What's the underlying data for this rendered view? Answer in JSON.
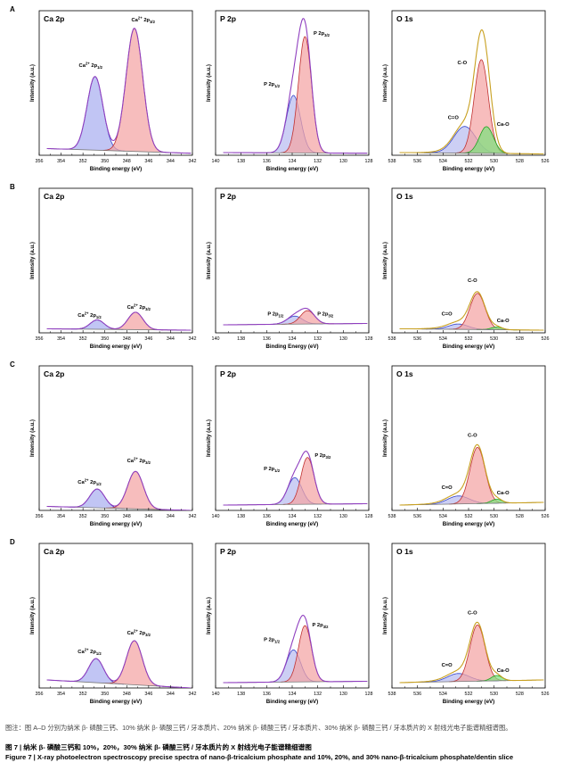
{
  "rows": [
    {
      "label": "A"
    },
    {
      "label": "B"
    },
    {
      "label": "C"
    },
    {
      "label": "D"
    }
  ],
  "captions": {
    "note": "图注：图 A–D 分别为纳米 β- 磷酸三钙、10% 纳米 β- 磷酸三钙 / 牙本质片、20% 纳米 β- 磷酸三钙 / 牙本质片、30% 纳米 β- 磷酸三钙 / 牙本质片的 X 射线光电子能谱精细谱图。",
    "figure_title_cn": "图 7 | 纳米 β- 磷酸三钙和 10%，20%，30% 纳米 β- 磷酸三钙 / 牙本质片的 X 射线光电子能谱精细谱图",
    "figure_title_en": "Figure 7 | X-ray photoelectron spectroscopy precise spectra of nano-β-tricalcium phosphate and 10%, 20%, and 30% nano-β-tricalcium phosphate/dentin slice"
  },
  "colors": {
    "ca_2p12": "#a9aef0",
    "ca_2p32": "#f4a3a3",
    "p_2p12": "#b9bdf0",
    "p_2p32": "#f4a3a3",
    "o_co": "#f4a3a3",
    "o_c_eq_o": "#b9bdf0",
    "o_cao": "#7de07d",
    "envelope_ca_p": "#8f3fbf",
    "envelope_o": "#c8a020",
    "background": "#777777"
  },
  "chart_data": [
    {
      "type": "line",
      "panel": "A-Ca",
      "title": "Ca 2p",
      "xlabel": "Binding energy (eV)",
      "ylabel": "Intensity (a.u.)",
      "xlim": [
        356,
        342
      ],
      "xticks": [
        356,
        354,
        352,
        350,
        348,
        346,
        344,
        342
      ],
      "ylim": [
        0,
        1.08
      ],
      "baseline": [
        0.05,
        0.015
      ],
      "peaks": [
        {
          "name": "Ca2+ 2p1/2",
          "center": 350.9,
          "height": 0.55,
          "fwhm": 1.7,
          "color": "ca_2p12"
        },
        {
          "name": "Ca2+ 2p3/2",
          "center": 347.3,
          "height": 0.92,
          "fwhm": 1.8,
          "color": "ca_2p32"
        }
      ],
      "envelope": "envelope_ca_p",
      "annotations": [
        {
          "base": "Ca",
          "sup": "2+",
          "rest": " 2p",
          "sub": "1/2",
          "x": 351.3,
          "y": 0.66
        },
        {
          "base": "Ca",
          "sup": "2+",
          "rest": " 2p",
          "sub": "3/2",
          "x": 346.5,
          "y": 1.0
        }
      ]
    },
    {
      "type": "line",
      "panel": "A-P",
      "title": "P 2p",
      "xlabel": "Binding energy (eV)",
      "ylabel": "Intensity (a.u.)",
      "xlim": [
        140,
        128
      ],
      "xticks": [
        140,
        138,
        136,
        134,
        132,
        130,
        128
      ],
      "ylim": [
        0,
        1.08
      ],
      "baseline": [
        0.02,
        0.015
      ],
      "peaks": [
        {
          "name": "P 2p1/2",
          "center": 133.9,
          "height": 0.43,
          "fwhm": 1.3,
          "color": "p_2p12"
        },
        {
          "name": "P 2p3/2",
          "center": 133.0,
          "height": 0.87,
          "fwhm": 1.2,
          "color": "p_2p32"
        }
      ],
      "envelope": "envelope_ca_p",
      "annotations": [
        {
          "base": "P 2p",
          "sub": "1/2",
          "x": 135.6,
          "y": 0.52
        },
        {
          "base": "P 2p",
          "sub": "3/2",
          "x": 131.7,
          "y": 0.9
        }
      ]
    },
    {
      "type": "line",
      "panel": "A-O",
      "title": "O 1s",
      "xlabel": "Binding energy (eV)",
      "ylabel": "Intensity (a.u.)",
      "xlim": [
        538,
        526
      ],
      "xticks": [
        538,
        536,
        534,
        532,
        530,
        528,
        526
      ],
      "ylim": [
        0,
        1.08
      ],
      "baseline": [
        0.02,
        0.01
      ],
      "peaks": [
        {
          "name": "C=O",
          "center": 532.3,
          "height": 0.2,
          "fwhm": 2.0,
          "color": "o_c_eq_o"
        },
        {
          "name": "C-O",
          "center": 531.0,
          "height": 0.7,
          "fwhm": 1.3,
          "color": "o_co"
        },
        {
          "name": "Ca-O",
          "center": 530.6,
          "height": 0.2,
          "fwhm": 1.3,
          "color": "o_cao"
        }
      ],
      "envelope": "envelope_o",
      "annotations": [
        {
          "base": "C-O",
          "x": 532.5,
          "y": 0.68
        },
        {
          "base": "C=O",
          "x": 533.2,
          "y": 0.27
        },
        {
          "base": "Ca-O",
          "x": 529.3,
          "y": 0.22
        }
      ]
    },
    {
      "type": "line",
      "panel": "B-Ca",
      "title": "Ca 2p",
      "xlabel": "Binding energy (eV)",
      "ylabel": "Intensity (a.u.)",
      "xlim": [
        356,
        342
      ],
      "xticks": [
        356,
        354,
        352,
        350,
        348,
        346,
        344,
        342
      ],
      "ylim": [
        0,
        1.08
      ],
      "baseline": [
        0.03,
        0.02
      ],
      "peaks": [
        {
          "name": "Ca2+ 2p1/2",
          "center": 350.7,
          "height": 0.07,
          "fwhm": 1.5,
          "color": "ca_2p12"
        },
        {
          "name": "Ca2+ 2p3/2",
          "center": 347.2,
          "height": 0.13,
          "fwhm": 1.6,
          "color": "ca_2p32"
        }
      ],
      "envelope": "envelope_ca_p",
      "annotations": [
        {
          "base": "Ca",
          "sup": "2+",
          "rest": " 2p",
          "sub": "1/2",
          "x": 351.4,
          "y": 0.12
        },
        {
          "base": "Ca",
          "sup": "2+",
          "rest": " 2p",
          "sub": "3/2",
          "x": 346.9,
          "y": 0.18
        }
      ]
    },
    {
      "type": "line",
      "panel": "B-P",
      "title": "P 2p",
      "xlabel": "Binding Energy (eV)",
      "ylabel": "Intensity (a.u.)",
      "xlim": [
        140,
        128
      ],
      "xticks": [
        140,
        138,
        136,
        134,
        132,
        130,
        128
      ],
      "ylim": [
        0,
        1.08
      ],
      "baseline": [
        0.06,
        0.07
      ],
      "peaks": [
        {
          "name": "P 2p1/2",
          "center": 133.8,
          "height": 0.06,
          "fwhm": 1.4,
          "color": "p_2p12"
        },
        {
          "name": "P 2p3/2",
          "center": 132.8,
          "height": 0.1,
          "fwhm": 1.3,
          "color": "p_2p32"
        }
      ],
      "envelope": "envelope_ca_p",
      "annotations": [
        {
          "base": "P 2p",
          "sub": "1/2",
          "x": 135.3,
          "y": 0.13
        },
        {
          "base": "P 2p",
          "sub": "3/2",
          "x": 131.4,
          "y": 0.13
        }
      ]
    },
    {
      "type": "line",
      "panel": "B-O",
      "title": "O 1s",
      "xlabel": "Binding energy (eV)",
      "ylabel": "Intensity (a.u.)",
      "xlim": [
        538,
        526
      ],
      "xticks": [
        538,
        536,
        534,
        532,
        530,
        528,
        526
      ],
      "ylim": [
        0,
        1.08
      ],
      "baseline": [
        0.03,
        0.02
      ],
      "peaks": [
        {
          "name": "C=O",
          "center": 532.8,
          "height": 0.04,
          "fwhm": 1.8,
          "color": "o_c_eq_o"
        },
        {
          "name": "C-O",
          "center": 531.3,
          "height": 0.27,
          "fwhm": 1.4,
          "color": "o_co"
        },
        {
          "name": "Ca-O",
          "center": 529.8,
          "height": 0.02,
          "fwhm": 1.0,
          "color": "o_cao"
        }
      ],
      "envelope": "envelope_o",
      "annotations": [
        {
          "base": "C-O",
          "x": 531.7,
          "y": 0.38
        },
        {
          "base": "C=O",
          "x": 533.7,
          "y": 0.13
        },
        {
          "base": "Ca-O",
          "x": 529.3,
          "y": 0.08
        }
      ]
    },
    {
      "type": "line",
      "panel": "C-Ca",
      "title": "Ca 2p",
      "xlabel": "Binding energy (eV)",
      "ylabel": "Intensity (a.u.)",
      "xlim": [
        356,
        342
      ],
      "xticks": [
        356,
        354,
        352,
        350,
        348,
        346,
        344,
        342
      ],
      "ylim": [
        0,
        1.08
      ],
      "baseline": [
        0.03,
        0.0
      ],
      "peaks": [
        {
          "name": "Ca2+ 2p1/2",
          "center": 350.7,
          "height": 0.14,
          "fwhm": 1.6,
          "color": "ca_2p12"
        },
        {
          "name": "Ca2+ 2p3/2",
          "center": 347.2,
          "height": 0.28,
          "fwhm": 1.7,
          "color": "ca_2p32"
        }
      ],
      "envelope": "envelope_ca_p",
      "annotations": [
        {
          "base": "Ca",
          "sup": "2+",
          "rest": " 2p",
          "sub": "1/2",
          "x": 351.4,
          "y": 0.2
        },
        {
          "base": "Ca",
          "sup": "2+",
          "rest": " 2p",
          "sub": "3/2",
          "x": 346.9,
          "y": 0.36
        }
      ]
    },
    {
      "type": "line",
      "panel": "C-P",
      "title": "P 2p",
      "xlabel": "Binding energy (eV)",
      "ylabel": "Intensity (a.u.)",
      "xlim": [
        140,
        128
      ],
      "xticks": [
        140,
        138,
        136,
        134,
        132,
        130,
        128
      ],
      "ylim": [
        0,
        1.08
      ],
      "baseline": [
        0.04,
        0.05
      ],
      "peaks": [
        {
          "name": "P 2p1/2",
          "center": 133.8,
          "height": 0.2,
          "fwhm": 1.3,
          "color": "p_2p12"
        },
        {
          "name": "P 2p3/2",
          "center": 132.8,
          "height": 0.35,
          "fwhm": 1.2,
          "color": "p_2p32"
        }
      ],
      "envelope": "envelope_ca_p",
      "annotations": [
        {
          "base": "P 2p",
          "sub": "1/2",
          "x": 135.6,
          "y": 0.3
        },
        {
          "base": "P 2p",
          "sub": "3/2",
          "x": 131.6,
          "y": 0.4
        }
      ]
    },
    {
      "type": "line",
      "panel": "C-O",
      "title": "O 1s",
      "xlabel": "Binding energy (eV)",
      "ylabel": "Intensity (a.u.)",
      "xlim": [
        538,
        526
      ],
      "xticks": [
        538,
        536,
        534,
        532,
        530,
        528,
        526
      ],
      "ylim": [
        0,
        1.08
      ],
      "baseline": [
        0.04,
        0.06
      ],
      "peaks": [
        {
          "name": "C=O",
          "center": 532.8,
          "height": 0.06,
          "fwhm": 2.0,
          "color": "o_c_eq_o"
        },
        {
          "name": "C-O",
          "center": 531.3,
          "height": 0.42,
          "fwhm": 1.4,
          "color": "o_co"
        },
        {
          "name": "Ca-O",
          "center": 529.8,
          "height": 0.03,
          "fwhm": 1.0,
          "color": "o_cao"
        }
      ],
      "envelope": "envelope_o",
      "annotations": [
        {
          "base": "C-O",
          "x": 531.7,
          "y": 0.55
        },
        {
          "base": "C=O",
          "x": 533.7,
          "y": 0.16
        },
        {
          "base": "Ca-O",
          "x": 529.3,
          "y": 0.12
        }
      ]
    },
    {
      "type": "line",
      "panel": "D-Ca",
      "title": "Ca 2p",
      "xlabel": "Binding energy (eV)",
      "ylabel": "Intensity (a.u.)",
      "xlim": [
        356,
        342
      ],
      "xticks": [
        356,
        354,
        352,
        350,
        348,
        346,
        344,
        342
      ],
      "ylim": [
        0,
        1.08
      ],
      "baseline": [
        0.06,
        0.0
      ],
      "peaks": [
        {
          "name": "Ca2+ 2p1/2",
          "center": 350.8,
          "height": 0.18,
          "fwhm": 1.6,
          "color": "ca_2p12"
        },
        {
          "name": "Ca2+ 2p3/2",
          "center": 347.3,
          "height": 0.33,
          "fwhm": 1.7,
          "color": "ca_2p32"
        }
      ],
      "envelope": "envelope_ca_p",
      "annotations": [
        {
          "base": "Ca",
          "sup": "2+",
          "rest": " 2p",
          "sub": "1/2",
          "x": 351.4,
          "y": 0.26
        },
        {
          "base": "Ca",
          "sup": "2+",
          "rest": " 2p",
          "sub": "3/2",
          "x": 346.9,
          "y": 0.4
        }
      ]
    },
    {
      "type": "line",
      "panel": "D-P",
      "title": "P 2p",
      "xlabel": "Binding energy (eV)",
      "ylabel": "Intensity (a.u.)",
      "xlim": [
        140,
        128
      ],
      "xticks": [
        140,
        138,
        136,
        134,
        132,
        130,
        128
      ],
      "ylim": [
        0,
        1.08
      ],
      "baseline": [
        0.04,
        0.05
      ],
      "peaks": [
        {
          "name": "P 2p1/2",
          "center": 133.9,
          "height": 0.24,
          "fwhm": 1.3,
          "color": "p_2p12"
        },
        {
          "name": "P 2p3/2",
          "center": 133.0,
          "height": 0.42,
          "fwhm": 1.2,
          "color": "p_2p32"
        }
      ],
      "envelope": "envelope_ca_p",
      "annotations": [
        {
          "base": "P 2p",
          "sub": "1/2",
          "x": 135.6,
          "y": 0.35
        },
        {
          "base": "P 2p",
          "sub": "3/2",
          "x": 131.8,
          "y": 0.46
        }
      ]
    },
    {
      "type": "line",
      "panel": "D-O",
      "title": "O 1s",
      "xlabel": "Binding energy (eV)",
      "ylabel": "Intensity (a.u.)",
      "xlim": [
        538,
        526
      ],
      "xticks": [
        538,
        536,
        534,
        532,
        530,
        528,
        526
      ],
      "ylim": [
        0,
        1.08
      ],
      "baseline": [
        0.04,
        0.06
      ],
      "peaks": [
        {
          "name": "C=O",
          "center": 532.8,
          "height": 0.06,
          "fwhm": 2.0,
          "color": "o_c_eq_o"
        },
        {
          "name": "C-O",
          "center": 531.3,
          "height": 0.42,
          "fwhm": 1.4,
          "color": "o_co"
        },
        {
          "name": "Ca-O",
          "center": 529.8,
          "height": 0.04,
          "fwhm": 1.0,
          "color": "o_cao"
        }
      ],
      "envelope": "envelope_o",
      "annotations": [
        {
          "base": "C-O",
          "x": 531.7,
          "y": 0.55
        },
        {
          "base": "C=O",
          "x": 533.7,
          "y": 0.16
        },
        {
          "base": "Ca-O",
          "x": 529.3,
          "y": 0.12
        }
      ]
    }
  ]
}
